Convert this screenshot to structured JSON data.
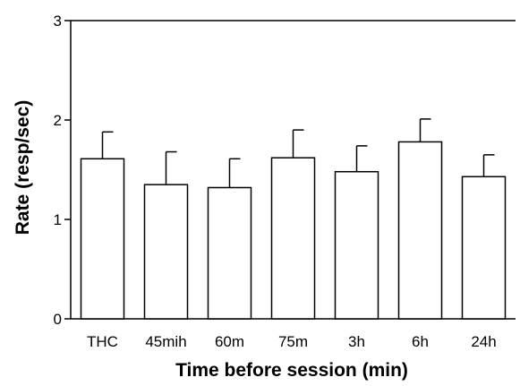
{
  "chart_data": {
    "type": "bar",
    "title": "",
    "xlabel": "Time before session (min)",
    "ylabel": "Rate (resp/sec)",
    "ylim": [
      0,
      3
    ],
    "yticks": [
      0,
      1,
      2,
      3
    ],
    "categories": [
      "THC",
      "45mih",
      "60m",
      "75m",
      "3h",
      "6h",
      "24h"
    ],
    "series": [
      {
        "values": [
          1.61,
          1.35,
          1.32,
          1.62,
          1.48,
          1.78,
          1.43
        ],
        "error": [
          0.27,
          0.33,
          0.29,
          0.28,
          0.26,
          0.23,
          0.22
        ]
      }
    ],
    "grid": false,
    "bar_fill": "#ffffff",
    "bar_stroke": "#000000"
  }
}
